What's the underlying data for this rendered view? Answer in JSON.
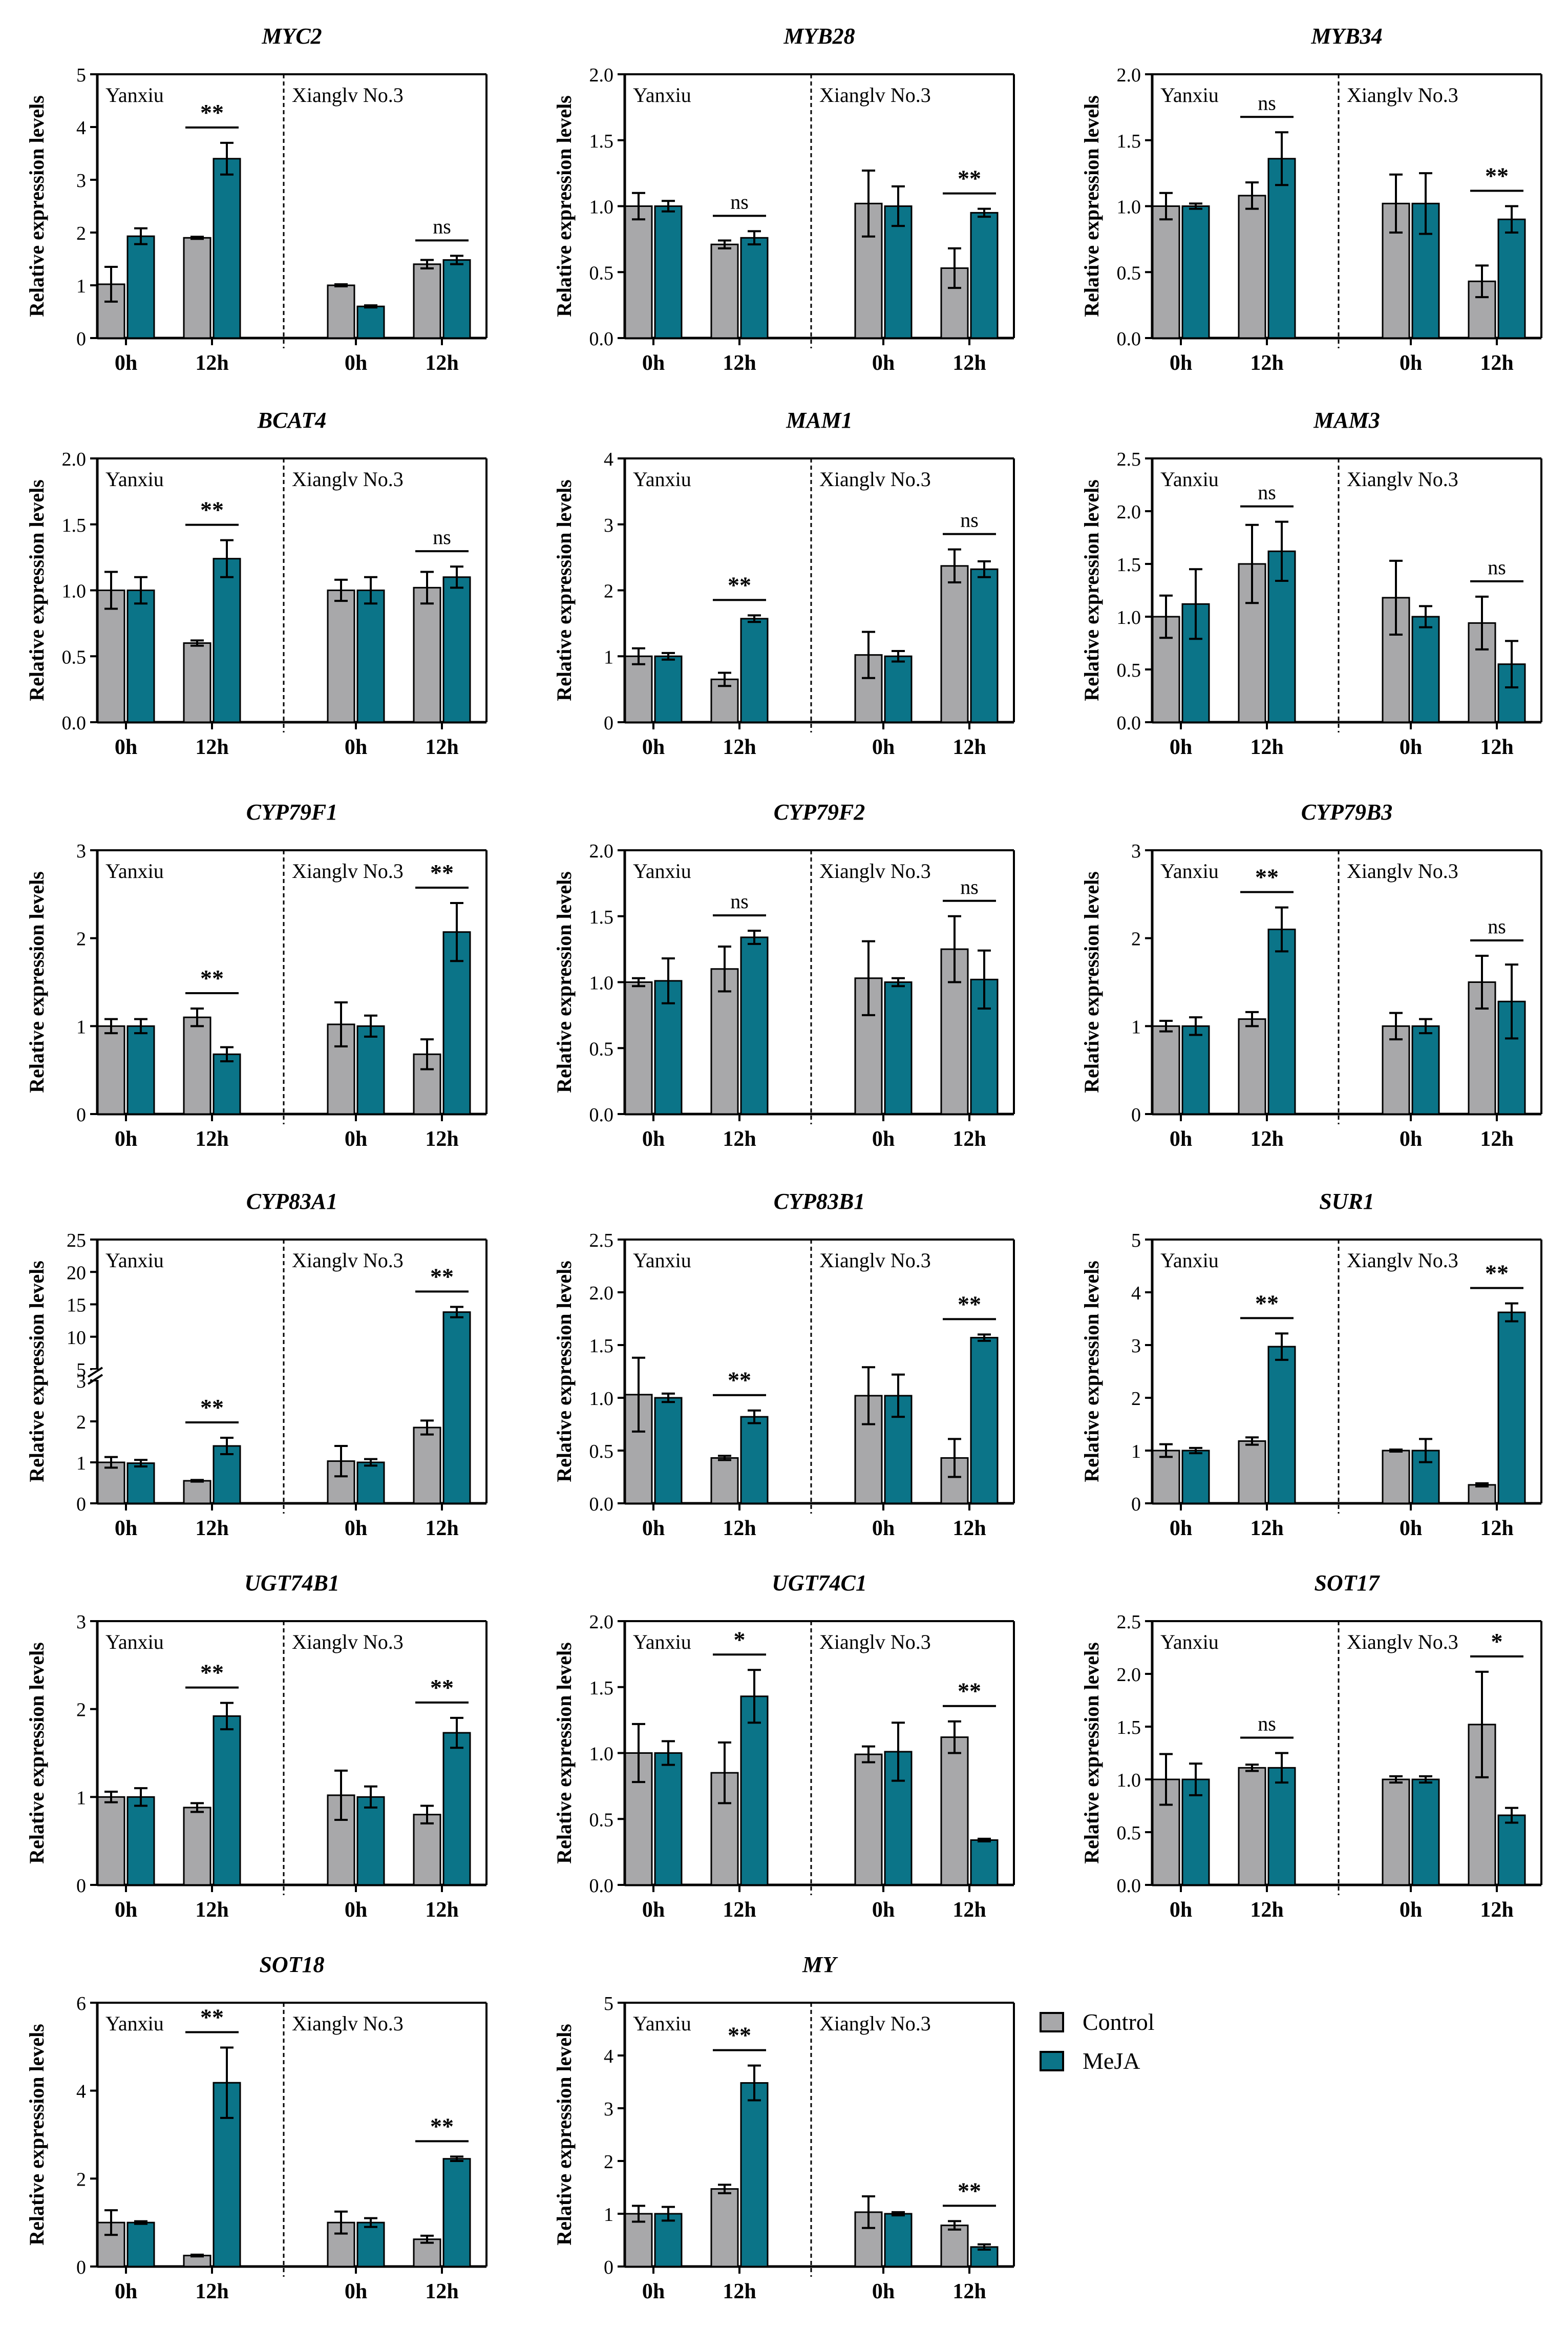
{
  "figure": {
    "ylabel": "Relative expression levels",
    "group_labels": [
      "Yanxiu",
      "Xianglv No.3"
    ],
    "time_labels": [
      "0h",
      "12h"
    ],
    "colors": {
      "Control": "#a8a8aa",
      "MeJA": "#0b7488"
    }
  },
  "legend": [
    {
      "name": "Control",
      "color": "#a8a8aa"
    },
    {
      "name": "MeJA",
      "color": "#0b7488"
    }
  ],
  "chart_data": [
    {
      "type": "bar",
      "title": "MYC2",
      "ylabel": "Relative expression levels",
      "ylim": [
        0,
        5
      ],
      "yticks": [
        0,
        1,
        2,
        3,
        4,
        5
      ],
      "categories": [
        "0h",
        "12h",
        "0h",
        "12h"
      ],
      "series": [
        {
          "name": "Control",
          "values": [
            1.02,
            1.9,
            1.0,
            1.4
          ],
          "errors": [
            0.33,
            0.02,
            0.02,
            0.08
          ]
        },
        {
          "name": "MeJA",
          "values": [
            1.93,
            3.4,
            0.6,
            1.48
          ],
          "errors": [
            0.15,
            0.3,
            0.02,
            0.08
          ]
        }
      ],
      "annotations": [
        "",
        "**",
        "",
        "ns"
      ]
    },
    {
      "type": "bar",
      "title": "MYB28",
      "ylabel": "Relative expression levels",
      "ylim": [
        0,
        2
      ],
      "yticks": [
        "0.0",
        "0.5",
        "1.0",
        "1.5",
        "2.0"
      ],
      "categories": [
        "0h",
        "12h",
        "0h",
        "12h"
      ],
      "series": [
        {
          "name": "Control",
          "values": [
            1.0,
            0.71,
            1.02,
            0.53
          ],
          "errors": [
            0.1,
            0.03,
            0.25,
            0.15
          ]
        },
        {
          "name": "MeJA",
          "values": [
            1.0,
            0.76,
            1.0,
            0.95
          ],
          "errors": [
            0.04,
            0.05,
            0.15,
            0.03
          ]
        }
      ],
      "annotations": [
        "",
        "ns",
        "",
        "**"
      ]
    },
    {
      "type": "bar",
      "title": "MYB34",
      "ylabel": "Relative expression levels",
      "ylim": [
        0,
        2
      ],
      "yticks": [
        "0.0",
        "0.5",
        "1.0",
        "1.5",
        "2.0"
      ],
      "categories": [
        "0h",
        "12h",
        "0h",
        "12h"
      ],
      "series": [
        {
          "name": "Control",
          "values": [
            1.0,
            1.08,
            1.02,
            0.43
          ],
          "errors": [
            0.1,
            0.1,
            0.22,
            0.12
          ]
        },
        {
          "name": "MeJA",
          "values": [
            1.0,
            1.36,
            1.02,
            0.9
          ],
          "errors": [
            0.02,
            0.2,
            0.23,
            0.1
          ]
        }
      ],
      "annotations": [
        "",
        "ns",
        "",
        "**"
      ]
    },
    {
      "type": "bar",
      "title": "BCAT4",
      "ylabel": "Relative expression levels",
      "ylim": [
        0,
        2
      ],
      "yticks": [
        "0.0",
        "0.5",
        "1.0",
        "1.5",
        "2.0"
      ],
      "categories": [
        "0h",
        "12h",
        "0h",
        "12h"
      ],
      "series": [
        {
          "name": "Control",
          "values": [
            1.0,
            0.6,
            1.0,
            1.02
          ],
          "errors": [
            0.14,
            0.02,
            0.08,
            0.12
          ]
        },
        {
          "name": "MeJA",
          "values": [
            1.0,
            1.24,
            1.0,
            1.1
          ],
          "errors": [
            0.1,
            0.14,
            0.1,
            0.08
          ]
        }
      ],
      "annotations": [
        "",
        "**",
        "",
        "ns"
      ]
    },
    {
      "type": "bar",
      "title": "MAM1",
      "ylabel": "Relative expression levels",
      "ylim": [
        0,
        4
      ],
      "yticks": [
        0,
        1,
        2,
        3,
        4
      ],
      "categories": [
        "0h",
        "12h",
        "0h",
        "12h"
      ],
      "series": [
        {
          "name": "Control",
          "values": [
            1.0,
            0.65,
            1.02,
            2.37
          ],
          "errors": [
            0.12,
            0.1,
            0.35,
            0.25
          ]
        },
        {
          "name": "MeJA",
          "values": [
            1.0,
            1.57,
            1.0,
            2.32
          ],
          "errors": [
            0.05,
            0.05,
            0.08,
            0.12
          ]
        }
      ],
      "annotations": [
        "",
        "**",
        "",
        "ns"
      ]
    },
    {
      "type": "bar",
      "title": "MAM3",
      "ylabel": "Relative expression levels",
      "ylim": [
        0,
        2.5
      ],
      "yticks": [
        "0.0",
        "0.5",
        "1.0",
        "1.5",
        "2.0",
        "2.5"
      ],
      "categories": [
        "0h",
        "12h",
        "0h",
        "12h"
      ],
      "series": [
        {
          "name": "Control",
          "values": [
            1.0,
            1.5,
            1.18,
            0.94
          ],
          "errors": [
            0.2,
            0.37,
            0.35,
            0.25
          ]
        },
        {
          "name": "MeJA",
          "values": [
            1.12,
            1.62,
            1.0,
            0.55
          ],
          "errors": [
            0.33,
            0.28,
            0.1,
            0.22
          ]
        }
      ],
      "annotations": [
        "",
        "ns",
        "",
        "ns"
      ]
    },
    {
      "type": "bar",
      "title": "CYP79F1",
      "ylabel": "Relative expression levels",
      "ylim": [
        0,
        3
      ],
      "yticks": [
        0,
        1,
        2,
        3
      ],
      "categories": [
        "0h",
        "12h",
        "0h",
        "12h"
      ],
      "series": [
        {
          "name": "Control",
          "values": [
            1.0,
            1.1,
            1.02,
            0.68
          ],
          "errors": [
            0.08,
            0.1,
            0.25,
            0.17
          ]
        },
        {
          "name": "MeJA",
          "values": [
            1.0,
            0.68,
            1.0,
            2.07
          ],
          "errors": [
            0.08,
            0.08,
            0.12,
            0.33
          ]
        }
      ],
      "annotations": [
        "",
        "**",
        "",
        "**"
      ]
    },
    {
      "type": "bar",
      "title": "CYP79F2",
      "ylabel": "Relative expression levels",
      "ylim": [
        0,
        2
      ],
      "yticks": [
        "0.0",
        "0.5",
        "1.0",
        "1.5",
        "2.0"
      ],
      "categories": [
        "0h",
        "12h",
        "0h",
        "12h"
      ],
      "series": [
        {
          "name": "Control",
          "values": [
            1.0,
            1.1,
            1.03,
            1.25
          ],
          "errors": [
            0.03,
            0.17,
            0.28,
            0.25
          ]
        },
        {
          "name": "MeJA",
          "values": [
            1.01,
            1.34,
            1.0,
            1.02
          ],
          "errors": [
            0.17,
            0.05,
            0.03,
            0.22
          ]
        }
      ],
      "annotations": [
        "",
        "ns",
        "",
        "ns"
      ]
    },
    {
      "type": "bar",
      "title": "CYP79B3",
      "ylabel": "Relative expression levels",
      "ylim": [
        0,
        3
      ],
      "yticks": [
        0,
        1,
        2,
        3
      ],
      "categories": [
        "0h",
        "12h",
        "0h",
        "12h"
      ],
      "series": [
        {
          "name": "Control",
          "values": [
            1.0,
            1.08,
            1.0,
            1.5
          ],
          "errors": [
            0.06,
            0.08,
            0.15,
            0.3
          ]
        },
        {
          "name": "MeJA",
          "values": [
            1.0,
            2.1,
            1.0,
            1.28
          ],
          "errors": [
            0.1,
            0.25,
            0.08,
            0.42
          ]
        }
      ],
      "annotations": [
        "",
        "**",
        "",
        "ns"
      ]
    },
    {
      "type": "bar",
      "title": "CYP83A1",
      "ylabel": "Relative expression levels",
      "ylim": [
        0,
        25
      ],
      "yticks": [
        0,
        1,
        2,
        3,
        5,
        10,
        15,
        20,
        25
      ],
      "axis_break": {
        "lower": [
          0,
          3
        ],
        "upper": [
          5,
          25
        ]
      },
      "categories": [
        "0h",
        "12h",
        "0h",
        "12h"
      ],
      "series": [
        {
          "name": "Control",
          "values": [
            1.0,
            0.55,
            1.03,
            1.85
          ],
          "errors": [
            0.13,
            0.02,
            0.37,
            0.17
          ]
        },
        {
          "name": "MeJA",
          "values": [
            0.98,
            1.4,
            1.0,
            13.8
          ],
          "errors": [
            0.08,
            0.2,
            0.08,
            0.8
          ]
        }
      ],
      "annotations": [
        "",
        "**",
        "",
        "**"
      ]
    },
    {
      "type": "bar",
      "title": "CYP83B1",
      "ylabel": "Relative expression levels",
      "ylim": [
        0,
        2.5
      ],
      "yticks": [
        "0.0",
        "0.5",
        "1.0",
        "1.5",
        "2.0",
        "2.5"
      ],
      "categories": [
        "0h",
        "12h",
        "0h",
        "12h"
      ],
      "series": [
        {
          "name": "Control",
          "values": [
            1.03,
            0.43,
            1.02,
            0.43
          ],
          "errors": [
            0.35,
            0.02,
            0.27,
            0.18
          ]
        },
        {
          "name": "MeJA",
          "values": [
            1.0,
            0.82,
            1.02,
            1.57
          ],
          "errors": [
            0.04,
            0.06,
            0.2,
            0.03
          ]
        }
      ],
      "annotations": [
        "",
        "**",
        "",
        "**"
      ]
    },
    {
      "type": "bar",
      "title": "SUR1",
      "ylabel": "Relative expression levels",
      "ylim": [
        0,
        5
      ],
      "yticks": [
        0,
        1,
        2,
        3,
        4,
        5
      ],
      "categories": [
        "0h",
        "12h",
        "0h",
        "12h"
      ],
      "series": [
        {
          "name": "Control",
          "values": [
            1.0,
            1.18,
            1.0,
            0.35
          ],
          "errors": [
            0.12,
            0.07,
            0.02,
            0.03
          ]
        },
        {
          "name": "MeJA",
          "values": [
            1.0,
            2.97,
            1.0,
            3.62
          ],
          "errors": [
            0.05,
            0.25,
            0.22,
            0.17
          ]
        }
      ],
      "annotations": [
        "",
        "**",
        "",
        "**"
      ]
    },
    {
      "type": "bar",
      "title": "UGT74B1",
      "ylabel": "Relative expression levels",
      "ylim": [
        0,
        3
      ],
      "yticks": [
        0,
        1,
        2,
        3
      ],
      "categories": [
        "0h",
        "12h",
        "0h",
        "12h"
      ],
      "series": [
        {
          "name": "Control",
          "values": [
            1.0,
            0.88,
            1.02,
            0.8
          ],
          "errors": [
            0.06,
            0.05,
            0.28,
            0.1
          ]
        },
        {
          "name": "MeJA",
          "values": [
            1.0,
            1.92,
            1.0,
            1.73
          ],
          "errors": [
            0.1,
            0.15,
            0.12,
            0.17
          ]
        }
      ],
      "annotations": [
        "",
        "**",
        "",
        "**"
      ]
    },
    {
      "type": "bar",
      "title": "UGT74C1",
      "ylabel": "Relative expression levels",
      "ylim": [
        0,
        2
      ],
      "yticks": [
        "0.0",
        "0.5",
        "1.0",
        "1.5",
        "2.0"
      ],
      "categories": [
        "0h",
        "12h",
        "0h",
        "12h"
      ],
      "series": [
        {
          "name": "Control",
          "values": [
            1.0,
            0.85,
            0.99,
            1.12
          ],
          "errors": [
            0.22,
            0.23,
            0.06,
            0.12
          ]
        },
        {
          "name": "MeJA",
          "values": [
            1.0,
            1.43,
            1.01,
            0.34
          ],
          "errors": [
            0.09,
            0.2,
            0.22,
            0.01
          ]
        }
      ],
      "annotations": [
        "",
        "*",
        "",
        "**"
      ]
    },
    {
      "type": "bar",
      "title": "SOT17",
      "ylabel": "Relative expression levels",
      "ylim": [
        0,
        2.5
      ],
      "yticks": [
        "0.0",
        "0.5",
        "1.0",
        "1.5",
        "2.0",
        "2.5"
      ],
      "categories": [
        "0h",
        "12h",
        "0h",
        "12h"
      ],
      "series": [
        {
          "name": "Control",
          "values": [
            1.0,
            1.11,
            1.0,
            1.52
          ],
          "errors": [
            0.24,
            0.03,
            0.03,
            0.5
          ]
        },
        {
          "name": "MeJA",
          "values": [
            1.0,
            1.11,
            1.0,
            0.66
          ],
          "errors": [
            0.15,
            0.14,
            0.03,
            0.07
          ]
        }
      ],
      "annotations": [
        "",
        "ns",
        "",
        "*"
      ]
    },
    {
      "type": "bar",
      "title": "SOT18",
      "ylabel": "Relative expression levels",
      "ylim": [
        0,
        6
      ],
      "yticks": [
        0,
        2,
        4,
        6
      ],
      "categories": [
        "0h",
        "12h",
        "0h",
        "12h"
      ],
      "series": [
        {
          "name": "Control",
          "values": [
            1.0,
            0.25,
            1.0,
            0.62
          ],
          "errors": [
            0.28,
            0.02,
            0.25,
            0.08
          ]
        },
        {
          "name": "MeJA",
          "values": [
            1.0,
            4.18,
            1.0,
            2.45
          ],
          "errors": [
            0.03,
            0.8,
            0.1,
            0.05
          ]
        }
      ],
      "annotations": [
        "",
        "**",
        "",
        "**"
      ]
    },
    {
      "type": "bar",
      "title": "MY",
      "ylabel": "Relative expression levels",
      "ylim": [
        0,
        5
      ],
      "yticks": [
        0,
        1,
        2,
        3,
        4,
        5
      ],
      "categories": [
        "0h",
        "12h",
        "0h",
        "12h"
      ],
      "series": [
        {
          "name": "Control",
          "values": [
            1.0,
            1.47,
            1.03,
            0.78
          ],
          "errors": [
            0.15,
            0.08,
            0.3,
            0.08
          ]
        },
        {
          "name": "MeJA",
          "values": [
            1.0,
            3.48,
            1.0,
            0.37
          ],
          "errors": [
            0.13,
            0.33,
            0.03,
            0.05
          ]
        }
      ],
      "annotations": [
        "",
        "**",
        "",
        "**"
      ]
    }
  ]
}
